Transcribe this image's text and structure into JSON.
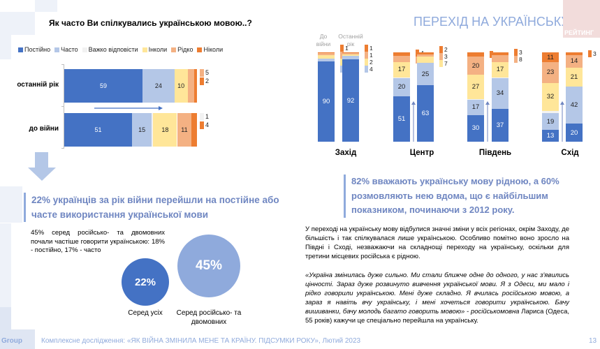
{
  "left_panel": {
    "question": "Як часто Ви спілкувались українською мовою..?",
    "callout": "22% українців за рік війни перейшли на постійне або часте використання української мови",
    "note": "45% серед російсько- та двомовних почали частіше говорити українською: 18% - постійно, 17% - часто",
    "circles": [
      {
        "value": "22%",
        "label": "Серед усіх"
      },
      {
        "value": "45%",
        "label": "Серед російсько- та двомовних"
      }
    ]
  },
  "right_panel": {
    "title": "ПЕРЕХІД НА УКРАЇНСЬКУ",
    "logo_text": "РЕЙТИНГ",
    "column_heads": [
      "До війни",
      "Останній рік"
    ],
    "callout": "82% вважають українську мову рідною, а 60% розмовляють нею вдома, що є найбільшим показником, починаючи з 2012 року.",
    "paragraph": "У переході на українську мову відбулися значні зміни у всіх регіонах, окрім Заходу, де більшість і так спілкувалася лише українською. Особливо помітно воно зросло на Півдні і Сході, незважаючи на складнощі переходу на українську, оскільки для третини місцевих російська є рідною.",
    "quote_italic": "«Україна змінилась дуже сильно. Ми стали ближче одне до одного, у нас з'явились цінності. Зараз дуже розвинуто вивчення української мови. Я з Одеси, ми мало і рідко говорили українською. Мені дуже складно. Я вчилась російською мовою, а зараз я навіть вчу українську, і мені хочеться говорити українською. Бачу вишиванки, бачу молодь багато говорить мовою» - російськомовна",
    "quote_normal": " Лариса (Одеса, 55 років) кажучи це спеціально перейшла на українську."
  },
  "footer": {
    "group": "Group",
    "text": "Комплексне дослідження: «ЯК ВІЙНА ЗМІНИЛА МЕНЕ ТА КРАЇНУ. ПІДСУМКИ РОКУ», Лютий 2023",
    "page": "13"
  },
  "colors": {
    "Постійно": "#4472c4",
    "Часто": "#b4c7e7",
    "Важко відповісти": "#f2f2f2",
    "Інколи": "#ffe699",
    "Рідко": "#f4b183",
    "Ніколи": "#ed7d31"
  },
  "chart_data": [
    {
      "type": "bar",
      "orientation": "horizontal-stacked",
      "title": "Як часто Ви спілкувались українською мовою..?",
      "legend": [
        "Постійно",
        "Часто",
        "Важко відповісти",
        "Інколи",
        "Рідко",
        "Ніколи"
      ],
      "legend_position": "top",
      "categories": [
        "останній рік",
        "до війни"
      ],
      "series": [
        {
          "name": "Постійно",
          "values": [
            59,
            51
          ]
        },
        {
          "name": "Часто",
          "values": [
            24,
            15
          ]
        },
        {
          "name": "Важко відповісти",
          "values": [
            0,
            1
          ]
        },
        {
          "name": "Інколи",
          "values": [
            10,
            18
          ]
        },
        {
          "name": "Рідко",
          "values": [
            5,
            11
          ]
        },
        {
          "name": "Ніколи",
          "values": [
            2,
            4
          ]
        }
      ],
      "xlim": [
        0,
        100
      ]
    },
    {
      "type": "bar",
      "orientation": "vertical-stacked",
      "title": "ПЕРЕХІД НА УКРАЇНСЬКУ",
      "groups": [
        "Захід",
        "Центр",
        "Південь",
        "Схід"
      ],
      "periods": [
        "До війни",
        "Останній рік"
      ],
      "series": [
        {
          "name": "Постійно",
          "values": [
            [
              90,
              92
            ],
            [
              51,
              63
            ],
            [
              30,
              37
            ],
            [
              13,
              20
            ]
          ]
        },
        {
          "name": "Часто",
          "values": [
            [
              3,
              4
            ],
            [
              20,
              25
            ],
            [
              17,
              34
            ],
            [
              19,
              42
            ]
          ]
        },
        {
          "name": "Важко відповісти",
          "values": [
            [
              0,
              0
            ],
            [
              1,
              0
            ],
            [
              1,
              1
            ],
            [
              2,
              0
            ]
          ]
        },
        {
          "name": "Інколи",
          "values": [
            [
              4,
              2
            ],
            [
              17,
              7
            ],
            [
              27,
              17
            ],
            [
              32,
              21
            ]
          ]
        },
        {
          "name": "Рідко",
          "values": [
            [
              2,
              1
            ],
            [
              7,
              3
            ],
            [
              20,
              8
            ],
            [
              23,
              14
            ]
          ]
        },
        {
          "name": "Ніколи",
          "values": [
            [
              1,
              1
            ],
            [
              4,
              2
            ],
            [
              5,
              3
            ],
            [
              11,
              3
            ]
          ]
        }
      ],
      "ylim": [
        0,
        100
      ]
    }
  ]
}
